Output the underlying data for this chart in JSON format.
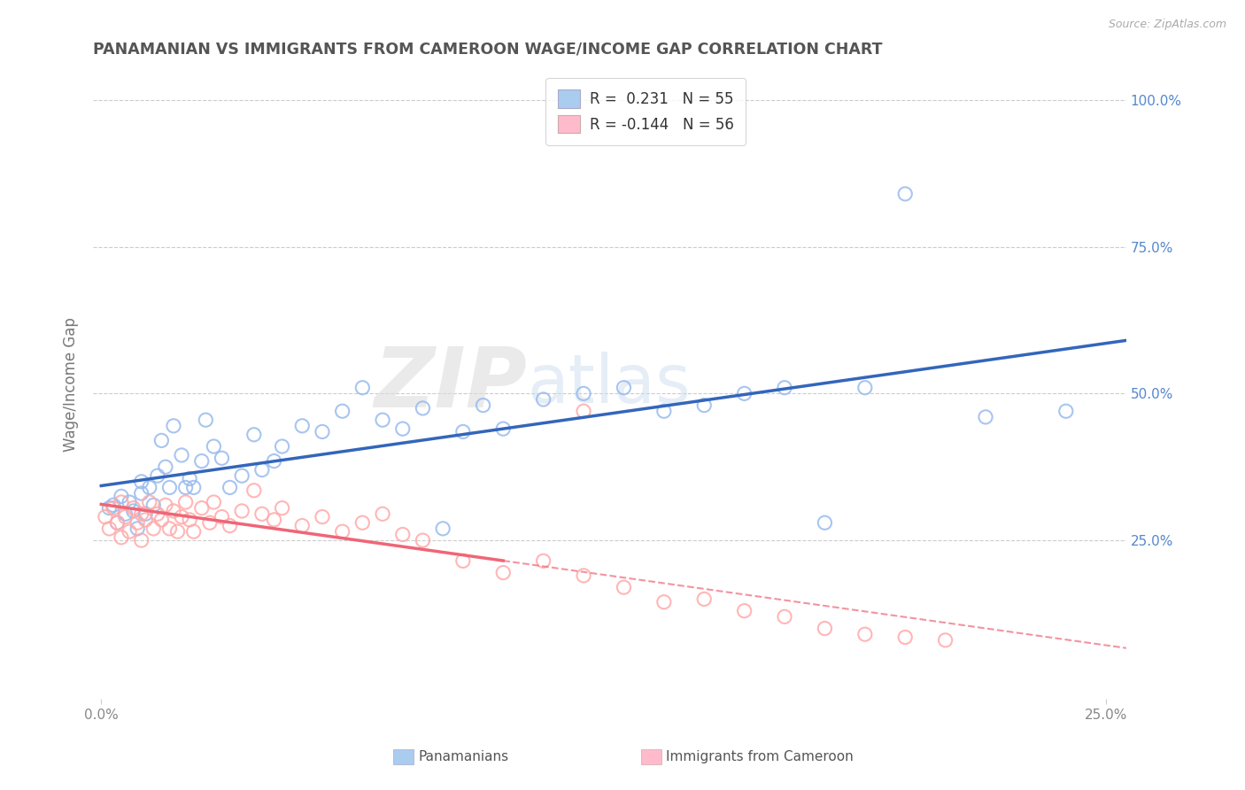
{
  "title": "PANAMANIAN VS IMMIGRANTS FROM CAMEROON WAGE/INCOME GAP CORRELATION CHART",
  "source": "Source: ZipAtlas.com",
  "ylabel": "Wage/Income Gap",
  "xlim": [
    -0.002,
    0.255
  ],
  "ylim": [
    -0.02,
    1.05
  ],
  "xtick_positions": [
    0.0,
    0.25
  ],
  "xtick_labels": [
    "0.0%",
    "25.0%"
  ],
  "ytick_positions": [
    0.25,
    0.5,
    0.75,
    1.0
  ],
  "ytick_labels": [
    "25.0%",
    "50.0%",
    "75.0%",
    "100.0%"
  ],
  "legend_label1": "Panamanians",
  "legend_label2": "Immigrants from Cameroon",
  "r1": 0.231,
  "n1": 55,
  "r2": -0.144,
  "n2": 56,
  "blue_scatter_color": "#99BBEE",
  "pink_scatter_color": "#FFAAAA",
  "blue_line_color": "#3366BB",
  "pink_line_color": "#EE6677",
  "blue_legend_color": "#AACCEE",
  "pink_legend_color": "#FFBBCC",
  "grid_color": "#CCCCCC",
  "background_color": "#FFFFFF",
  "title_color": "#555555",
  "axis_label_color": "#777777",
  "tick_color_x": "#888888",
  "tick_color_y": "#5588CC",
  "watermark_text": "ZIPatlas",
  "stat_color": "#4477CC",
  "blue_x": [
    0.002,
    0.003,
    0.004,
    0.005,
    0.006,
    0.007,
    0.008,
    0.009,
    0.01,
    0.01,
    0.011,
    0.012,
    0.013,
    0.014,
    0.015,
    0.016,
    0.017,
    0.018,
    0.02,
    0.021,
    0.022,
    0.023,
    0.025,
    0.026,
    0.028,
    0.03,
    0.032,
    0.035,
    0.038,
    0.04,
    0.043,
    0.045,
    0.05,
    0.055,
    0.06,
    0.065,
    0.07,
    0.075,
    0.08,
    0.09,
    0.095,
    0.1,
    0.11,
    0.12,
    0.13,
    0.14,
    0.15,
    0.16,
    0.17,
    0.19,
    0.2,
    0.22,
    0.24,
    0.18,
    0.085
  ],
  "blue_y": [
    0.305,
    0.31,
    0.28,
    0.325,
    0.295,
    0.315,
    0.3,
    0.27,
    0.35,
    0.33,
    0.295,
    0.34,
    0.31,
    0.36,
    0.42,
    0.375,
    0.34,
    0.445,
    0.395,
    0.34,
    0.355,
    0.34,
    0.385,
    0.455,
    0.41,
    0.39,
    0.34,
    0.36,
    0.43,
    0.37,
    0.385,
    0.41,
    0.445,
    0.435,
    0.47,
    0.51,
    0.455,
    0.44,
    0.475,
    0.435,
    0.48,
    0.44,
    0.49,
    0.5,
    0.51,
    0.47,
    0.48,
    0.5,
    0.51,
    0.51,
    0.84,
    0.46,
    0.47,
    0.28,
    0.27
  ],
  "pink_x": [
    0.001,
    0.002,
    0.003,
    0.004,
    0.005,
    0.005,
    0.006,
    0.007,
    0.008,
    0.009,
    0.01,
    0.01,
    0.011,
    0.012,
    0.013,
    0.014,
    0.015,
    0.016,
    0.017,
    0.018,
    0.019,
    0.02,
    0.021,
    0.022,
    0.023,
    0.025,
    0.027,
    0.028,
    0.03,
    0.032,
    0.035,
    0.038,
    0.04,
    0.043,
    0.045,
    0.05,
    0.055,
    0.06,
    0.065,
    0.07,
    0.075,
    0.08,
    0.09,
    0.1,
    0.11,
    0.12,
    0.13,
    0.14,
    0.15,
    0.16,
    0.17,
    0.18,
    0.19,
    0.2,
    0.21,
    0.12
  ],
  "pink_y": [
    0.29,
    0.27,
    0.305,
    0.28,
    0.315,
    0.255,
    0.29,
    0.265,
    0.305,
    0.28,
    0.295,
    0.25,
    0.285,
    0.315,
    0.27,
    0.295,
    0.285,
    0.31,
    0.27,
    0.3,
    0.265,
    0.29,
    0.315,
    0.285,
    0.265,
    0.305,
    0.28,
    0.315,
    0.29,
    0.275,
    0.3,
    0.335,
    0.295,
    0.285,
    0.305,
    0.275,
    0.29,
    0.265,
    0.28,
    0.295,
    0.26,
    0.25,
    0.215,
    0.195,
    0.215,
    0.19,
    0.17,
    0.145,
    0.15,
    0.13,
    0.12,
    0.1,
    0.09,
    0.085,
    0.08,
    0.47
  ]
}
